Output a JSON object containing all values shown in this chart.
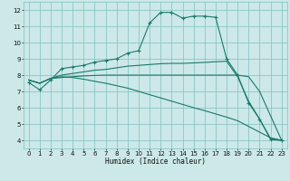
{
  "xlabel": "Humidex (Indice chaleur)",
  "bg_color": "#cce8e8",
  "grid_color": "#80bfbf",
  "line_color": "#1a7a6a",
  "xlim": [
    -0.5,
    23.5
  ],
  "ylim": [
    3.5,
    12.5
  ],
  "xticks": [
    0,
    1,
    2,
    3,
    4,
    5,
    6,
    7,
    8,
    9,
    10,
    11,
    12,
    13,
    14,
    15,
    16,
    17,
    18,
    19,
    20,
    21,
    22,
    23
  ],
  "yticks": [
    4,
    5,
    6,
    7,
    8,
    9,
    10,
    11,
    12
  ],
  "lines": [
    {
      "x": [
        0,
        1,
        2,
        3,
        4,
        5,
        6,
        7,
        8,
        9,
        10,
        11,
        12,
        13,
        14,
        15,
        16,
        17,
        18,
        19,
        20,
        21,
        22,
        23
      ],
      "y": [
        7.55,
        7.1,
        7.7,
        8.4,
        8.5,
        8.6,
        8.8,
        8.9,
        9.0,
        9.35,
        9.5,
        11.2,
        11.85,
        11.85,
        11.5,
        11.62,
        11.62,
        11.55,
        9.0,
        8.0,
        6.3,
        5.3,
        4.05,
        4.0
      ],
      "marker": true
    },
    {
      "x": [
        0,
        1,
        2,
        3,
        4,
        5,
        6,
        7,
        8,
        9,
        10,
        11,
        12,
        13,
        14,
        15,
        16,
        17,
        18,
        19,
        20,
        21,
        22,
        23
      ],
      "y": [
        7.7,
        7.5,
        7.8,
        8.0,
        8.1,
        8.2,
        8.3,
        8.35,
        8.45,
        8.55,
        8.6,
        8.65,
        8.7,
        8.72,
        8.72,
        8.75,
        8.78,
        8.82,
        8.85,
        7.9,
        6.4,
        5.3,
        4.1,
        4.0
      ],
      "marker": false
    },
    {
      "x": [
        0,
        1,
        2,
        3,
        4,
        5,
        6,
        7,
        8,
        9,
        10,
        11,
        12,
        13,
        14,
        15,
        16,
        17,
        18,
        19,
        20,
        21,
        22,
        23
      ],
      "y": [
        7.7,
        7.5,
        7.8,
        7.85,
        7.9,
        7.95,
        7.98,
        8.0,
        8.0,
        8.0,
        8.0,
        8.0,
        8.0,
        8.0,
        8.0,
        8.0,
        8.0,
        8.0,
        8.0,
        8.0,
        7.9,
        7.0,
        5.5,
        4.0
      ],
      "marker": false
    },
    {
      "x": [
        0,
        1,
        2,
        3,
        4,
        5,
        6,
        7,
        8,
        9,
        10,
        11,
        12,
        13,
        14,
        15,
        16,
        17,
        18,
        19,
        20,
        21,
        22,
        23
      ],
      "y": [
        7.7,
        7.5,
        7.8,
        7.9,
        7.85,
        7.75,
        7.62,
        7.5,
        7.35,
        7.2,
        7.0,
        6.8,
        6.6,
        6.4,
        6.2,
        6.0,
        5.82,
        5.62,
        5.42,
        5.2,
        4.85,
        4.5,
        4.15,
        4.0
      ],
      "marker": false
    }
  ]
}
